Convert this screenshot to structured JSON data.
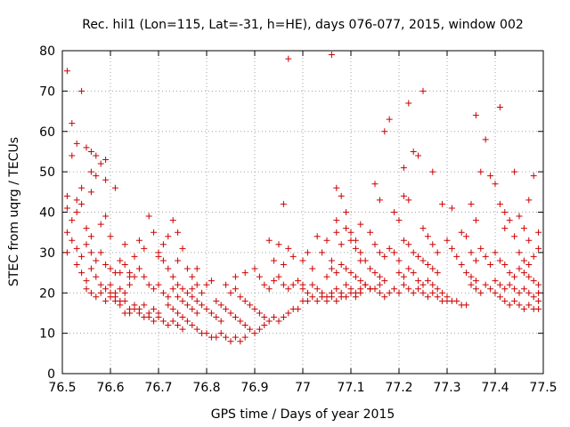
{
  "chart_data": {
    "type": "scatter",
    "title": "Rec. hil1 (Lon=115, Lat=-31, h=HE), days 076-077, 2015, window 002",
    "xlabel": "GPS time / Days of year 2015",
    "ylabel": "STEC from uqrg / TECUs",
    "xlim": [
      76.5,
      77.5
    ],
    "ylim": [
      0,
      80
    ],
    "xticks": [
      "76.5",
      "76.6",
      "76.7",
      "76.8",
      "76.9",
      "77",
      "77.1",
      "77.2",
      "77.3",
      "77.4",
      "77.5"
    ],
    "yticks": [
      "0",
      "10",
      "20",
      "30",
      "40",
      "50",
      "60",
      "70",
      "80"
    ],
    "grid": true,
    "legend": "none",
    "marker": "+",
    "color": "#cc0000",
    "points": [
      [
        76.51,
        75
      ],
      [
        76.51,
        41
      ],
      [
        76.52,
        62
      ],
      [
        76.52,
        54
      ],
      [
        76.53,
        57
      ],
      [
        76.54,
        70
      ],
      [
        76.55,
        56
      ],
      [
        76.56,
        55
      ],
      [
        76.56,
        50
      ],
      [
        76.57,
        54
      ],
      [
        76.58,
        52
      ],
      [
        76.59,
        53
      ],
      [
        76.51,
        44
      ],
      [
        76.53,
        43
      ],
      [
        76.54,
        46
      ],
      [
        76.56,
        45
      ],
      [
        76.57,
        49
      ],
      [
        76.59,
        48
      ],
      [
        76.61,
        46
      ],
      [
        76.51,
        35
      ],
      [
        76.52,
        38
      ],
      [
        76.53,
        40
      ],
      [
        76.54,
        42
      ],
      [
        76.55,
        36
      ],
      [
        76.56,
        34
      ],
      [
        76.58,
        37
      ],
      [
        76.59,
        39
      ],
      [
        76.6,
        34
      ],
      [
        76.51,
        30
      ],
      [
        76.52,
        33
      ],
      [
        76.53,
        31
      ],
      [
        76.54,
        29
      ],
      [
        76.55,
        32
      ],
      [
        76.56,
        30
      ],
      [
        76.57,
        28
      ],
      [
        76.58,
        30
      ],
      [
        76.59,
        27
      ],
      [
        76.6,
        26
      ],
      [
        76.61,
        25
      ],
      [
        76.62,
        28
      ],
      [
        76.63,
        27
      ],
      [
        76.64,
        25
      ],
      [
        76.65,
        24
      ],
      [
        76.53,
        27
      ],
      [
        76.54,
        25
      ],
      [
        76.55,
        23
      ],
      [
        76.56,
        26
      ],
      [
        76.57,
        24
      ],
      [
        76.58,
        22
      ],
      [
        76.59,
        21
      ],
      [
        76.6,
        22
      ],
      [
        76.61,
        20
      ],
      [
        76.62,
        21
      ],
      [
        76.63,
        20
      ],
      [
        76.64,
        22
      ],
      [
        76.55,
        21
      ],
      [
        76.56,
        20
      ],
      [
        76.57,
        19
      ],
      [
        76.58,
        20
      ],
      [
        76.59,
        18
      ],
      [
        76.6,
        19
      ],
      [
        76.61,
        18
      ],
      [
        76.62,
        17
      ],
      [
        76.63,
        18
      ],
      [
        76.64,
        16
      ],
      [
        76.65,
        17
      ],
      [
        76.66,
        16
      ],
      [
        76.67,
        17
      ],
      [
        76.68,
        15
      ],
      [
        76.69,
        16
      ],
      [
        76.7,
        15
      ],
      [
        76.6,
        20
      ],
      [
        76.61,
        19
      ],
      [
        76.62,
        18
      ],
      [
        76.63,
        15
      ],
      [
        76.64,
        15
      ],
      [
        76.65,
        16
      ],
      [
        76.66,
        15
      ],
      [
        76.67,
        14
      ],
      [
        76.68,
        14
      ],
      [
        76.69,
        13
      ],
      [
        76.7,
        14
      ],
      [
        76.71,
        13
      ],
      [
        76.72,
        12
      ],
      [
        76.73,
        13
      ],
      [
        76.74,
        12
      ],
      [
        76.75,
        11
      ],
      [
        76.62,
        25
      ],
      [
        76.64,
        24
      ],
      [
        76.66,
        26
      ],
      [
        76.67,
        24
      ],
      [
        76.68,
        22
      ],
      [
        76.69,
        21
      ],
      [
        76.7,
        22
      ],
      [
        76.71,
        20
      ],
      [
        76.72,
        19
      ],
      [
        76.73,
        21
      ],
      [
        76.74,
        19
      ],
      [
        76.75,
        18
      ],
      [
        76.76,
        17
      ],
      [
        76.77,
        16
      ],
      [
        76.78,
        15
      ],
      [
        76.63,
        32
      ],
      [
        76.65,
        29
      ],
      [
        76.66,
        33
      ],
      [
        76.67,
        31
      ],
      [
        76.68,
        39
      ],
      [
        76.69,
        35
      ],
      [
        76.7,
        30
      ],
      [
        76.71,
        32
      ],
      [
        76.72,
        34
      ],
      [
        76.73,
        38
      ],
      [
        76.74,
        35
      ],
      [
        76.75,
        31
      ],
      [
        76.74,
        28
      ],
      [
        76.76,
        26
      ],
      [
        76.77,
        24
      ],
      [
        76.78,
        26
      ],
      [
        76.7,
        29
      ],
      [
        76.71,
        28
      ],
      [
        76.72,
        26
      ],
      [
        76.73,
        24
      ],
      [
        76.74,
        22
      ],
      [
        76.75,
        21
      ],
      [
        76.76,
        20
      ],
      [
        76.77,
        19
      ],
      [
        76.78,
        18
      ],
      [
        76.79,
        17
      ],
      [
        76.8,
        16
      ],
      [
        76.81,
        15
      ],
      [
        76.82,
        14
      ],
      [
        76.83,
        13
      ],
      [
        76.72,
        17
      ],
      [
        76.73,
        16
      ],
      [
        76.74,
        15
      ],
      [
        76.75,
        14
      ],
      [
        76.76,
        13
      ],
      [
        76.77,
        12
      ],
      [
        76.78,
        11
      ],
      [
        76.79,
        10
      ],
      [
        76.8,
        10
      ],
      [
        76.81,
        9
      ],
      [
        76.82,
        9
      ],
      [
        76.83,
        10
      ],
      [
        76.84,
        9
      ],
      [
        76.85,
        8
      ],
      [
        76.86,
        9
      ],
      [
        76.87,
        8
      ],
      [
        76.88,
        9
      ],
      [
        76.77,
        21
      ],
      [
        76.78,
        22
      ],
      [
        76.79,
        20
      ],
      [
        76.8,
        22
      ],
      [
        76.81,
        23
      ],
      [
        76.82,
        18
      ],
      [
        76.83,
        17
      ],
      [
        76.84,
        16
      ],
      [
        76.85,
        15
      ],
      [
        76.86,
        14
      ],
      [
        76.87,
        13
      ],
      [
        76.88,
        12
      ],
      [
        76.89,
        11
      ],
      [
        76.9,
        10
      ],
      [
        76.91,
        11
      ],
      [
        76.92,
        12
      ],
      [
        76.84,
        22
      ],
      [
        76.85,
        20
      ],
      [
        76.86,
        21
      ],
      [
        76.87,
        19
      ],
      [
        76.88,
        18
      ],
      [
        76.89,
        17
      ],
      [
        76.9,
        16
      ],
      [
        76.91,
        15
      ],
      [
        76.92,
        14
      ],
      [
        76.93,
        13
      ],
      [
        76.94,
        14
      ],
      [
        76.95,
        13
      ],
      [
        76.96,
        14
      ],
      [
        76.97,
        15
      ],
      [
        76.98,
        16
      ],
      [
        76.99,
        16
      ],
      [
        76.86,
        24
      ],
      [
        76.88,
        25
      ],
      [
        76.9,
        26
      ],
      [
        76.91,
        24
      ],
      [
        76.92,
        22
      ],
      [
        76.93,
        21
      ],
      [
        76.94,
        23
      ],
      [
        76.95,
        24
      ],
      [
        76.96,
        22
      ],
      [
        76.97,
        21
      ],
      [
        76.98,
        22
      ],
      [
        76.99,
        23
      ],
      [
        77.0,
        22
      ],
      [
        76.93,
        33
      ],
      [
        76.95,
        32
      ],
      [
        76.96,
        42
      ],
      [
        76.97,
        31
      ],
      [
        76.98,
        29
      ],
      [
        76.94,
        28
      ],
      [
        76.96,
        27
      ],
      [
        76.97,
        78
      ],
      [
        77.0,
        28
      ],
      [
        77.01,
        30
      ],
      [
        77.02,
        26
      ],
      [
        77.03,
        34
      ],
      [
        77.04,
        30
      ],
      [
        77.05,
        33
      ],
      [
        77.06,
        28
      ],
      [
        77.07,
        35
      ],
      [
        77.08,
        32
      ],
      [
        77.09,
        36
      ],
      [
        77.1,
        33
      ],
      [
        77.11,
        31
      ],
      [
        77.12,
        28
      ],
      [
        77.06,
        79
      ],
      [
        77.0,
        21
      ],
      [
        77.01,
        20
      ],
      [
        77.02,
        22
      ],
      [
        77.03,
        21
      ],
      [
        77.04,
        20
      ],
      [
        77.05,
        19
      ],
      [
        77.06,
        20
      ],
      [
        77.07,
        21
      ],
      [
        77.08,
        20
      ],
      [
        77.09,
        22
      ],
      [
        77.1,
        21
      ],
      [
        77.11,
        20
      ],
      [
        77.12,
        21
      ],
      [
        77.13,
        22
      ],
      [
        77.14,
        21
      ],
      [
        77.0,
        18
      ],
      [
        77.01,
        18
      ],
      [
        77.02,
        19
      ],
      [
        77.03,
        18
      ],
      [
        77.04,
        19
      ],
      [
        77.05,
        18
      ],
      [
        77.06,
        19
      ],
      [
        77.07,
        18
      ],
      [
        77.08,
        19
      ],
      [
        77.09,
        19
      ],
      [
        77.1,
        20
      ],
      [
        77.11,
        19
      ],
      [
        77.12,
        20
      ],
      [
        77.07,
        46
      ],
      [
        77.08,
        44
      ],
      [
        77.07,
        38
      ],
      [
        77.09,
        40
      ],
      [
        77.1,
        35
      ],
      [
        77.11,
        33
      ],
      [
        77.12,
        30
      ],
      [
        77.13,
        28
      ],
      [
        77.14,
        26
      ],
      [
        77.15,
        25
      ],
      [
        77.16,
        24
      ],
      [
        77.17,
        23
      ],
      [
        77.05,
        24
      ],
      [
        77.06,
        26
      ],
      [
        77.07,
        25
      ],
      [
        77.08,
        27
      ],
      [
        77.09,
        26
      ],
      [
        77.1,
        25
      ],
      [
        77.11,
        24
      ],
      [
        77.12,
        23
      ],
      [
        77.13,
        22
      ],
      [
        77.14,
        21
      ],
      [
        77.15,
        21
      ],
      [
        77.16,
        22
      ],
      [
        77.12,
        37
      ],
      [
        77.14,
        35
      ],
      [
        77.15,
        47
      ],
      [
        77.16,
        43
      ],
      [
        77.17,
        60
      ],
      [
        77.18,
        63
      ],
      [
        77.19,
        40
      ],
      [
        77.2,
        38
      ],
      [
        77.21,
        44
      ],
      [
        77.22,
        43
      ],
      [
        77.23,
        55
      ],
      [
        77.24,
        54
      ],
      [
        77.21,
        51
      ],
      [
        77.15,
        32
      ],
      [
        77.16,
        30
      ],
      [
        77.17,
        29
      ],
      [
        77.18,
        31
      ],
      [
        77.19,
        30
      ],
      [
        77.2,
        28
      ],
      [
        77.21,
        33
      ],
      [
        77.22,
        32
      ],
      [
        77.23,
        30
      ],
      [
        77.24,
        29
      ],
      [
        77.25,
        28
      ],
      [
        77.26,
        27
      ],
      [
        77.27,
        26
      ],
      [
        77.28,
        25
      ],
      [
        77.16,
        20
      ],
      [
        77.17,
        19
      ],
      [
        77.18,
        20
      ],
      [
        77.19,
        21
      ],
      [
        77.2,
        20
      ],
      [
        77.21,
        22
      ],
      [
        77.22,
        21
      ],
      [
        77.23,
        20
      ],
      [
        77.24,
        21
      ],
      [
        77.25,
        20
      ],
      [
        77.26,
        19
      ],
      [
        77.27,
        20
      ],
      [
        77.28,
        19
      ],
      [
        77.29,
        18
      ],
      [
        77.3,
        18
      ],
      [
        77.22,
        67
      ],
      [
        77.25,
        70
      ],
      [
        77.27,
        50
      ],
      [
        77.25,
        36
      ],
      [
        77.26,
        34
      ],
      [
        77.27,
        32
      ],
      [
        77.28,
        30
      ],
      [
        77.29,
        42
      ],
      [
        77.3,
        33
      ],
      [
        77.31,
        31
      ],
      [
        77.32,
        29
      ],
      [
        77.33,
        27
      ],
      [
        77.34,
        25
      ],
      [
        77.35,
        24
      ],
      [
        77.36,
        23
      ],
      [
        77.2,
        25
      ],
      [
        77.21,
        24
      ],
      [
        77.22,
        26
      ],
      [
        77.23,
        25
      ],
      [
        77.24,
        23
      ],
      [
        77.25,
        22
      ],
      [
        77.26,
        23
      ],
      [
        77.27,
        22
      ],
      [
        77.28,
        21
      ],
      [
        77.29,
        20
      ],
      [
        77.3,
        19
      ],
      [
        77.31,
        18
      ],
      [
        77.32,
        18
      ],
      [
        77.33,
        17
      ],
      [
        77.34,
        17
      ],
      [
        77.31,
        41
      ],
      [
        77.33,
        35
      ],
      [
        77.34,
        34
      ],
      [
        77.35,
        42
      ],
      [
        77.36,
        38
      ],
      [
        77.37,
        50
      ],
      [
        77.38,
        58
      ],
      [
        77.39,
        49
      ],
      [
        77.4,
        47
      ],
      [
        77.41,
        42
      ],
      [
        77.42,
        40
      ],
      [
        77.44,
        50
      ],
      [
        77.36,
        64
      ],
      [
        77.41,
        66
      ],
      [
        77.35,
        30
      ],
      [
        77.36,
        28
      ],
      [
        77.37,
        31
      ],
      [
        77.38,
        29
      ],
      [
        77.39,
        27
      ],
      [
        77.4,
        30
      ],
      [
        77.41,
        28
      ],
      [
        77.42,
        27
      ],
      [
        77.43,
        25
      ],
      [
        77.44,
        24
      ],
      [
        77.45,
        26
      ],
      [
        77.46,
        25
      ],
      [
        77.47,
        24
      ],
      [
        77.48,
        23
      ],
      [
        77.49,
        22
      ],
      [
        77.35,
        22
      ],
      [
        77.36,
        21
      ],
      [
        77.37,
        20
      ],
      [
        77.38,
        22
      ],
      [
        77.39,
        21
      ],
      [
        77.4,
        20
      ],
      [
        77.41,
        19
      ],
      [
        77.42,
        18
      ],
      [
        77.43,
        17
      ],
      [
        77.44,
        18
      ],
      [
        77.45,
        17
      ],
      [
        77.46,
        16
      ],
      [
        77.47,
        17
      ],
      [
        77.48,
        16
      ],
      [
        77.49,
        16
      ],
      [
        77.42,
        36
      ],
      [
        77.43,
        38
      ],
      [
        77.44,
        34
      ],
      [
        77.45,
        39
      ],
      [
        77.46,
        36
      ],
      [
        77.47,
        33
      ],
      [
        77.48,
        49
      ],
      [
        77.49,
        35
      ],
      [
        77.47,
        43
      ],
      [
        77.45,
        30
      ],
      [
        77.46,
        28
      ],
      [
        77.47,
        27
      ],
      [
        77.48,
        29
      ],
      [
        77.49,
        31
      ],
      [
        77.4,
        23
      ],
      [
        77.41,
        22
      ],
      [
        77.42,
        21
      ],
      [
        77.43,
        22
      ],
      [
        77.44,
        21
      ],
      [
        77.45,
        20
      ],
      [
        77.46,
        21
      ],
      [
        77.47,
        20
      ],
      [
        77.48,
        19
      ],
      [
        77.49,
        20
      ],
      [
        77.49,
        18
      ]
    ]
  }
}
